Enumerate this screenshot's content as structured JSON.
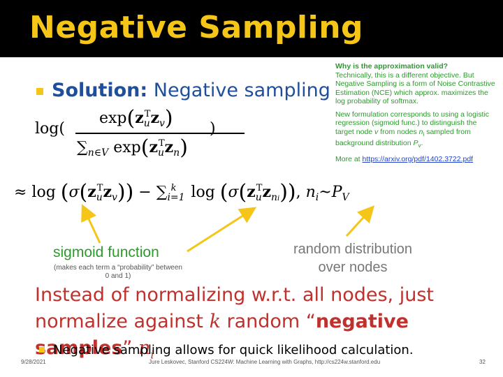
{
  "slide": {
    "title": "Negative Sampling",
    "solution_bold": "Solution:",
    "solution_rest": " Negative sampling",
    "note": {
      "question": "Why is the approximation valid?",
      "para1": "Technically, this is a different objective. But Negative Sampling is a form of Noise Contrastive Estimation (NCE) which approx. maximizes the log probability of softmax.",
      "para2_a": "New formulation corresponds to using a logistic regression (sigmoid func.) to distinguish the target node ",
      "para2_v": "v",
      "para2_b": " from nodes ",
      "para2_n": "n",
      "para2_i": "i",
      "para2_c": " sampled from background distribution ",
      "para2_p": "P",
      "para2_pv": "v",
      "para2_end": ".",
      "more_prefix": "More at ",
      "link": "https://arxiv.org/pdf/1402.3722.pdf"
    },
    "labels": {
      "sigmoid": "sigmoid function",
      "sigmoid_note": "(makes each term a “probability” between 0 and 1)",
      "random_line1": "random distribution",
      "random_line2": "over nodes"
    },
    "instead_line1": "Instead of normalizing w.r.t. all nodes, just",
    "instead_line2_a": "normalize against ",
    "instead_line2_k": "k",
    "instead_line2_b": " random “",
    "instead_line2_bold": "negative samples",
    "instead_line2_c": "” ",
    "instead_line2_n": "n",
    "instead_line2_i": "i",
    "bullet2": "Negative sampling allows for quick likelihood calculation.",
    "footer": {
      "date": "9/28/2021",
      "center": "Jure Leskovec, Stanford CS224W: Machine Learning with Graphs, http://cs224w.stanford.edu",
      "page": "32"
    }
  },
  "colors": {
    "title": "#f5c518",
    "accent_blue": "#1f4e9c",
    "green": "#2d9a2d",
    "red": "#c0302c",
    "arrow": "#f5c518"
  }
}
